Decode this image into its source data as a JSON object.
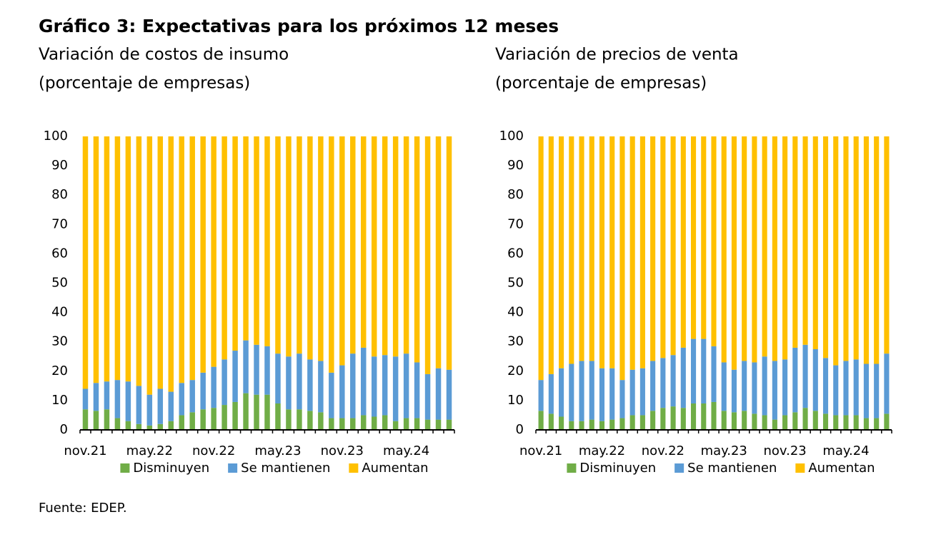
{
  "title": "Gráfico 3: Expectativas para los próximos 12 meses",
  "source": "Fuente: EDEP.",
  "chart_data": [
    {
      "type": "bar",
      "stacked": true,
      "title": "Variación de costos de insumo",
      "subtitle": "(porcentaje de empresas)",
      "categories": [
        "nov.21",
        null,
        null,
        null,
        null,
        null,
        "may.22",
        null,
        null,
        null,
        null,
        null,
        "nov.22",
        null,
        null,
        null,
        null,
        null,
        "may.23",
        null,
        null,
        null,
        null,
        null,
        "nov.23",
        null,
        null,
        null,
        null,
        null,
        "may.24",
        null,
        null,
        null,
        null
      ],
      "ylim": [
        0,
        100
      ],
      "yticks": [
        0,
        10,
        20,
        30,
        40,
        50,
        60,
        70,
        80,
        90,
        100
      ],
      "grid": false,
      "legend": "bottom",
      "series": [
        {
          "name": "Disminuyen",
          "color": "#70ad47",
          "values": [
            7,
            6.5,
            7,
            4,
            3,
            2,
            1.5,
            2,
            3,
            5,
            6,
            7,
            7.5,
            8.5,
            9.5,
            12.5,
            12,
            12,
            9,
            7,
            7,
            6.5,
            6,
            4,
            4,
            4,
            5,
            4.5,
            5,
            3,
            4,
            4,
            3.5,
            3.5,
            3.5
          ]
        },
        {
          "name": "Se mantienen",
          "color": "#5b9bd5",
          "values": [
            7,
            9.5,
            9.5,
            13,
            13.5,
            13,
            10.5,
            12,
            10,
            11,
            11,
            12.5,
            14,
            15.5,
            17.5,
            18,
            17,
            16.5,
            17,
            18,
            19,
            17.5,
            17.5,
            15.5,
            18,
            22,
            23,
            20.5,
            20.5,
            22,
            22,
            19,
            15.5,
            17.5,
            17
          ]
        },
        {
          "name": "Aumentan",
          "color": "#ffc000",
          "values": [
            86,
            84,
            83.5,
            83,
            83.5,
            85,
            88,
            86,
            87,
            84,
            83,
            80.5,
            78.5,
            76,
            73,
            69.5,
            71,
            71.5,
            74,
            75,
            74,
            76,
            76.5,
            80.5,
            78,
            74,
            72,
            75,
            74.5,
            75,
            74,
            77,
            81,
            79,
            79.5
          ]
        }
      ]
    },
    {
      "type": "bar",
      "stacked": true,
      "title": "Variación de precios de venta",
      "subtitle": "(porcentaje de empresas)",
      "categories": [
        "nov.21",
        null,
        null,
        null,
        null,
        null,
        "may.22",
        null,
        null,
        null,
        null,
        null,
        "nov.22",
        null,
        null,
        null,
        null,
        null,
        "may.23",
        null,
        null,
        null,
        null,
        null,
        "nov.23",
        null,
        null,
        null,
        null,
        null,
        "may.24",
        null,
        null,
        null,
        null
      ],
      "ylim": [
        0,
        100
      ],
      "yticks": [
        0,
        10,
        20,
        30,
        40,
        50,
        60,
        70,
        80,
        90,
        100
      ],
      "grid": false,
      "legend": "bottom",
      "series": [
        {
          "name": "Disminuyen",
          "color": "#70ad47",
          "values": [
            6.5,
            5.5,
            4.5,
            3,
            3,
            3.5,
            3,
            3.5,
            4,
            5,
            5,
            6.5,
            7.5,
            8,
            7.5,
            9,
            9,
            9.5,
            6.5,
            6,
            6.5,
            5.5,
            5,
            3.5,
            5,
            6,
            7.5,
            6.5,
            5.5,
            5,
            5,
            5,
            4,
            4,
            5.5
          ]
        },
        {
          "name": "Se mantienen",
          "color": "#5b9bd5",
          "values": [
            10.5,
            13.5,
            16.5,
            19.5,
            20.5,
            20,
            18,
            17.5,
            13,
            15.5,
            16,
            17,
            17,
            17.5,
            20.5,
            22,
            22,
            19,
            16.5,
            14.5,
            17,
            17.5,
            20,
            20,
            19,
            22,
            21.5,
            21,
            19,
            17,
            18.5,
            19,
            18.5,
            18.5,
            20.5
          ]
        },
        {
          "name": "Aumentan",
          "color": "#ffc000",
          "values": [
            83,
            81,
            79,
            77.5,
            76.5,
            76.5,
            79,
            79,
            83,
            79.5,
            79,
            76.5,
            75.5,
            74.5,
            72,
            69,
            69,
            71.5,
            77,
            79.5,
            76.5,
            77,
            75,
            76.5,
            76,
            72,
            71,
            72.5,
            75.5,
            78,
            76.5,
            76,
            77.5,
            77.5,
            74
          ]
        }
      ]
    }
  ]
}
